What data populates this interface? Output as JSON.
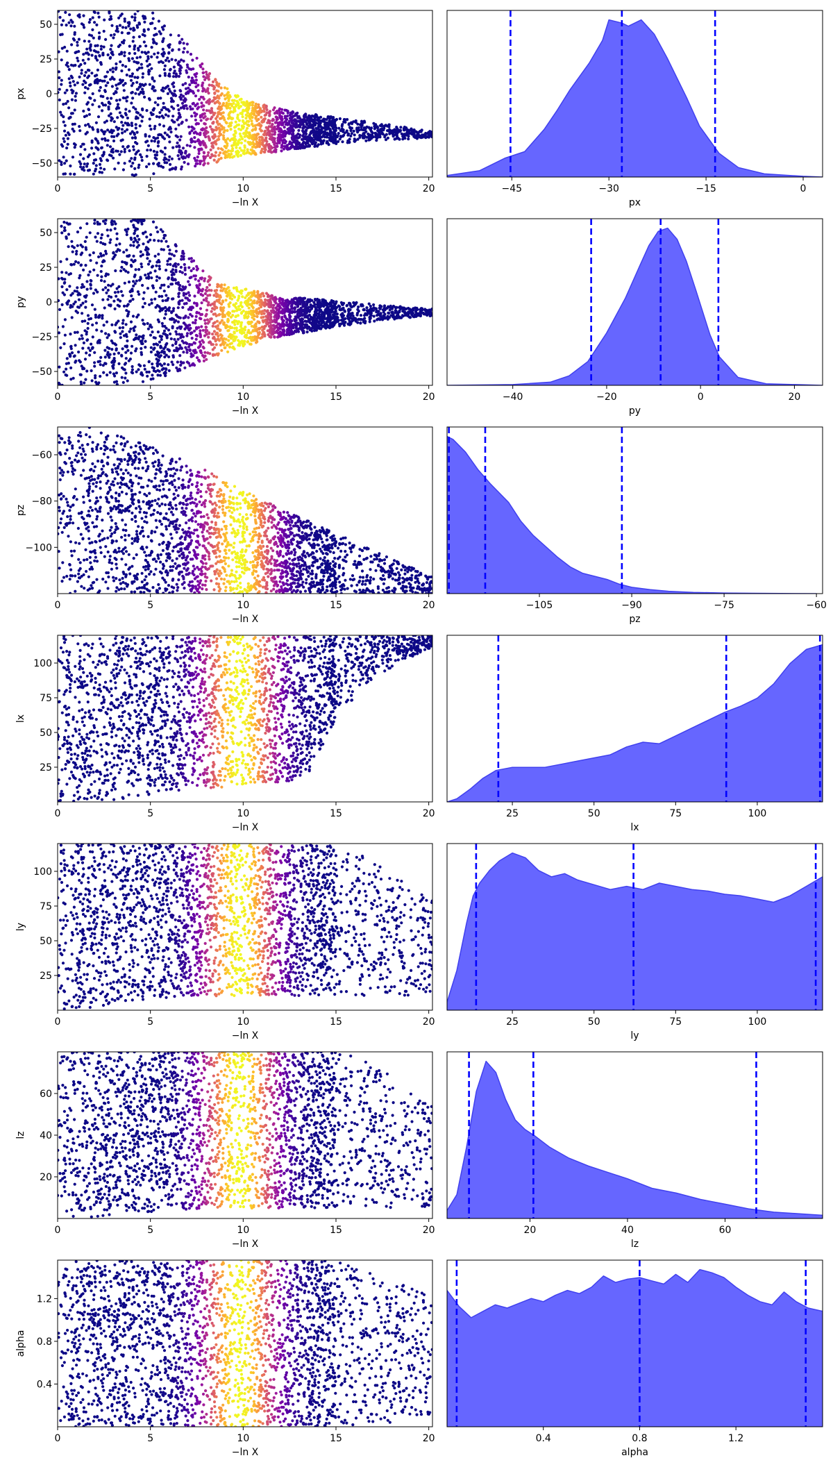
{
  "figure": {
    "xlabel_left": "−ln X"
  },
  "colors": {
    "kde_fill": "#6666ff",
    "kde_edge": "#4040ee",
    "quantile_line": "#0000ff",
    "scatter_colormap": "plasma"
  },
  "chart_data": [
    {
      "param": "px",
      "scatter": {
        "type": "scatter",
        "xlabel": "−ln X",
        "ylabel": "px",
        "xlim": [
          0,
          20.2
        ],
        "ylim": [
          -60,
          60
        ],
        "xticks": [
          0,
          5,
          10,
          15,
          20
        ],
        "yticks": [
          -50,
          -25,
          0,
          25,
          50
        ],
        "envelope": {
          "low": [
            -60,
            -60,
            -60,
            -58,
            -55,
            -50,
            -45,
            -42,
            -39,
            -36,
            -34,
            -33,
            -32
          ],
          "high": [
            60,
            60,
            60,
            60,
            42,
            12,
            -4,
            -10,
            -14,
            -17,
            -20,
            -23,
            -27
          ]
        }
      },
      "kde": {
        "type": "area",
        "xlabel": "px",
        "xlim": [
          -55,
          3
        ],
        "xticks": [
          -45,
          -30,
          -15,
          0
        ],
        "x": [
          -55,
          -50,
          -46,
          -43,
          -40,
          -38,
          -36,
          -33,
          -31,
          -30,
          -28,
          -27,
          -25,
          -23,
          -21,
          -18,
          -16,
          -13,
          -10,
          -6,
          0,
          3
        ],
        "density": [
          0.01,
          0.04,
          0.12,
          0.16,
          0.3,
          0.42,
          0.55,
          0.72,
          0.86,
          0.99,
          0.97,
          0.95,
          0.99,
          0.9,
          0.75,
          0.5,
          0.32,
          0.15,
          0.06,
          0.02,
          0.005,
          0
        ],
        "quantiles": [
          -45.2,
          -28,
          -13.6
        ]
      }
    },
    {
      "param": "py",
      "scatter": {
        "type": "scatter",
        "xlabel": "−ln X",
        "ylabel": "py",
        "xlim": [
          0,
          20.2
        ],
        "ylim": [
          -60,
          60
        ],
        "xticks": [
          0,
          5,
          10,
          15,
          20
        ],
        "yticks": [
          -50,
          -25,
          0,
          25,
          50
        ],
        "envelope": {
          "low": [
            -60,
            -60,
            -60,
            -58,
            -50,
            -40,
            -32,
            -26,
            -22,
            -18,
            -15,
            -12,
            -10
          ],
          "high": [
            60,
            60,
            60,
            60,
            38,
            18,
            10,
            5,
            3,
            1,
            -1,
            -3,
            -5
          ]
        }
      },
      "kde": {
        "type": "area",
        "xlabel": "py",
        "xlim": [
          -54,
          26
        ],
        "xticks": [
          -40,
          -20,
          0,
          20
        ],
        "x": [
          -54,
          -40,
          -32,
          -28,
          -24,
          -20,
          -16,
          -13,
          -11,
          -9,
          -7,
          -5,
          -3,
          -1,
          2,
          4,
          8,
          14,
          26
        ],
        "density": [
          0,
          0.005,
          0.02,
          0.06,
          0.15,
          0.33,
          0.55,
          0.75,
          0.88,
          0.97,
          0.99,
          0.92,
          0.78,
          0.6,
          0.32,
          0.18,
          0.05,
          0.01,
          0
        ],
        "quantiles": [
          -23.3,
          -8.5,
          3.8
        ]
      }
    },
    {
      "param": "pz",
      "scatter": {
        "type": "scatter",
        "xlabel": "−ln X",
        "ylabel": "pz",
        "xlim": [
          0,
          20.2
        ],
        "ylim": [
          -120,
          -48
        ],
        "xticks": [
          0,
          5,
          10,
          15,
          20
        ],
        "yticks": [
          -100,
          -80,
          -60
        ],
        "envelope": {
          "low": [
            -120,
            -120,
            -120,
            -120,
            -120,
            -120,
            -120,
            -120,
            -120,
            -120,
            -120,
            -120,
            -120
          ],
          "high": [
            -48,
            -48,
            -52,
            -56,
            -62,
            -68,
            -75,
            -82,
            -88,
            -94,
            -100,
            -106,
            -112
          ]
        }
      },
      "kde": {
        "type": "area",
        "xlabel": "pz",
        "xlim": [
          -120,
          -59
        ],
        "xticks": [
          -105,
          -90,
          -75,
          -60
        ],
        "x": [
          -120,
          -119,
          -117,
          -115,
          -113,
          -110,
          -108,
          -106,
          -104,
          -102,
          -100,
          -98,
          -96,
          -94,
          -92,
          -90,
          -87,
          -84,
          -80,
          -75,
          -70,
          -60
        ],
        "density": [
          1.0,
          0.98,
          0.9,
          0.79,
          0.7,
          0.58,
          0.46,
          0.37,
          0.3,
          0.23,
          0.17,
          0.13,
          0.11,
          0.09,
          0.06,
          0.04,
          0.025,
          0.015,
          0.008,
          0.004,
          0.002,
          0
        ],
        "quantiles": [
          -119.7,
          -113.8,
          -91.6
        ]
      }
    },
    {
      "param": "lx",
      "scatter": {
        "type": "scatter",
        "xlabel": "−ln X",
        "ylabel": "lx",
        "xlim": [
          0,
          20.2
        ],
        "ylim": [
          0,
          120
        ],
        "xticks": [
          0,
          5,
          10,
          15,
          20
        ],
        "yticks": [
          25,
          50,
          75,
          100
        ],
        "envelope": {
          "low": [
            0,
            0,
            2,
            5,
            8,
            10,
            12,
            14,
            16,
            60,
            85,
            100,
            110
          ],
          "high": [
            120,
            120,
            120,
            120,
            120,
            120,
            120,
            120,
            120,
            120,
            120,
            120,
            120
          ]
        }
      },
      "kde": {
        "type": "area",
        "xlabel": "lx",
        "xlim": [
          5,
          120
        ],
        "xticks": [
          25,
          50,
          75,
          100
        ],
        "x": [
          5,
          8,
          12,
          16,
          20,
          25,
          30,
          35,
          40,
          45,
          50,
          55,
          60,
          65,
          70,
          75,
          80,
          85,
          90,
          95,
          100,
          105,
          110,
          115,
          120
        ],
        "density": [
          0,
          0.02,
          0.08,
          0.15,
          0.2,
          0.22,
          0.22,
          0.22,
          0.24,
          0.26,
          0.28,
          0.3,
          0.35,
          0.38,
          0.37,
          0.42,
          0.47,
          0.52,
          0.57,
          0.61,
          0.66,
          0.75,
          0.88,
          0.97,
          1.0
        ],
        "quantiles": [
          20.7,
          90.5,
          119.2
        ]
      }
    },
    {
      "param": "ly",
      "scatter": {
        "type": "scatter",
        "xlabel": "−ln X",
        "ylabel": "ly",
        "xlim": [
          0,
          20.2
        ],
        "ylim": [
          0,
          120
        ],
        "xticks": [
          0,
          5,
          10,
          15,
          20
        ],
        "yticks": [
          25,
          50,
          75,
          100
        ],
        "envelope": {
          "low": [
            0,
            0,
            5,
            8,
            10,
            10,
            10,
            10,
            10,
            10,
            10,
            10,
            10
          ],
          "high": [
            120,
            120,
            120,
            120,
            120,
            120,
            120,
            120,
            120,
            120,
            110,
            95,
            80
          ]
        }
      },
      "kde": {
        "type": "area",
        "xlabel": "ly",
        "xlim": [
          5,
          120
        ],
        "xticks": [
          25,
          50,
          75,
          100
        ],
        "x": [
          5,
          8,
          11,
          13,
          15,
          18,
          21,
          25,
          29,
          33,
          37,
          41,
          45,
          50,
          55,
          60,
          65,
          70,
          75,
          80,
          85,
          90,
          95,
          100,
          105,
          110,
          115,
          120
        ],
        "density": [
          0.05,
          0.25,
          0.55,
          0.72,
          0.8,
          0.88,
          0.94,
          0.99,
          0.96,
          0.88,
          0.84,
          0.86,
          0.82,
          0.79,
          0.76,
          0.78,
          0.76,
          0.8,
          0.78,
          0.76,
          0.75,
          0.73,
          0.72,
          0.7,
          0.68,
          0.72,
          0.78,
          0.84
        ],
        "quantiles": [
          13.9,
          62.1,
          117.9
        ]
      }
    },
    {
      "param": "lz",
      "scatter": {
        "type": "scatter",
        "xlabel": "−ln X",
        "ylabel": "lz",
        "xlim": [
          0,
          20.2
        ],
        "ylim": [
          0,
          80
        ],
        "xticks": [
          0,
          5,
          10,
          15,
          20
        ],
        "yticks": [
          20,
          40,
          60
        ],
        "envelope": {
          "low": [
            0,
            0,
            2,
            3,
            4,
            5,
            5,
            5,
            5,
            5,
            5,
            5,
            5
          ],
          "high": [
            80,
            80,
            80,
            80,
            80,
            80,
            80,
            80,
            80,
            80,
            76,
            66,
            54
          ]
        }
      },
      "kde": {
        "type": "area",
        "xlabel": "lz",
        "xlim": [
          3,
          80
        ],
        "xticks": [
          20,
          40,
          60
        ],
        "x": [
          3,
          5,
          7,
          9,
          11,
          13,
          15,
          17,
          19,
          21,
          24,
          28,
          32,
          36,
          40,
          45,
          50,
          55,
          60,
          65,
          70,
          75,
          80
        ],
        "density": [
          0.05,
          0.15,
          0.45,
          0.8,
          0.99,
          0.92,
          0.75,
          0.62,
          0.56,
          0.52,
          0.45,
          0.38,
          0.33,
          0.29,
          0.25,
          0.19,
          0.16,
          0.12,
          0.09,
          0.06,
          0.04,
          0.03,
          0.02
        ],
        "quantiles": [
          7.5,
          20.7,
          66.4
        ]
      }
    },
    {
      "param": "alpha",
      "scatter": {
        "type": "scatter",
        "xlabel": "−ln X",
        "ylabel": "alpha",
        "xlim": [
          0,
          20.2
        ],
        "ylim": [
          0,
          1.56
        ],
        "xticks": [
          0,
          5,
          10,
          15,
          20
        ],
        "yticks": [
          0.4,
          0.8,
          1.2
        ],
        "envelope": {
          "low": [
            0,
            0,
            0,
            0,
            0,
            0,
            0,
            0,
            0,
            0,
            0,
            0.05,
            0.1
          ],
          "high": [
            1.56,
            1.56,
            1.56,
            1.56,
            1.56,
            1.56,
            1.56,
            1.56,
            1.56,
            1.56,
            1.45,
            1.35,
            1.25
          ]
        }
      },
      "kde": {
        "type": "area",
        "xlabel": "alpha",
        "xlim": [
          0,
          1.56
        ],
        "xticks": [
          0.4,
          0.8,
          1.2
        ],
        "x": [
          0,
          0.05,
          0.1,
          0.15,
          0.2,
          0.25,
          0.3,
          0.35,
          0.4,
          0.45,
          0.5,
          0.55,
          0.6,
          0.65,
          0.7,
          0.75,
          0.8,
          0.85,
          0.9,
          0.95,
          1.0,
          1.05,
          1.1,
          1.15,
          1.2,
          1.25,
          1.3,
          1.35,
          1.4,
          1.45,
          1.5,
          1.56
        ],
        "density": [
          0.85,
          0.75,
          0.68,
          0.72,
          0.76,
          0.74,
          0.77,
          0.8,
          0.78,
          0.82,
          0.85,
          0.83,
          0.87,
          0.94,
          0.9,
          0.92,
          0.93,
          0.91,
          0.89,
          0.95,
          0.9,
          0.98,
          0.96,
          0.93,
          0.87,
          0.82,
          0.78,
          0.76,
          0.84,
          0.78,
          0.74,
          0.72
        ],
        "quantiles": [
          0.04,
          0.8,
          1.49
        ]
      }
    }
  ]
}
